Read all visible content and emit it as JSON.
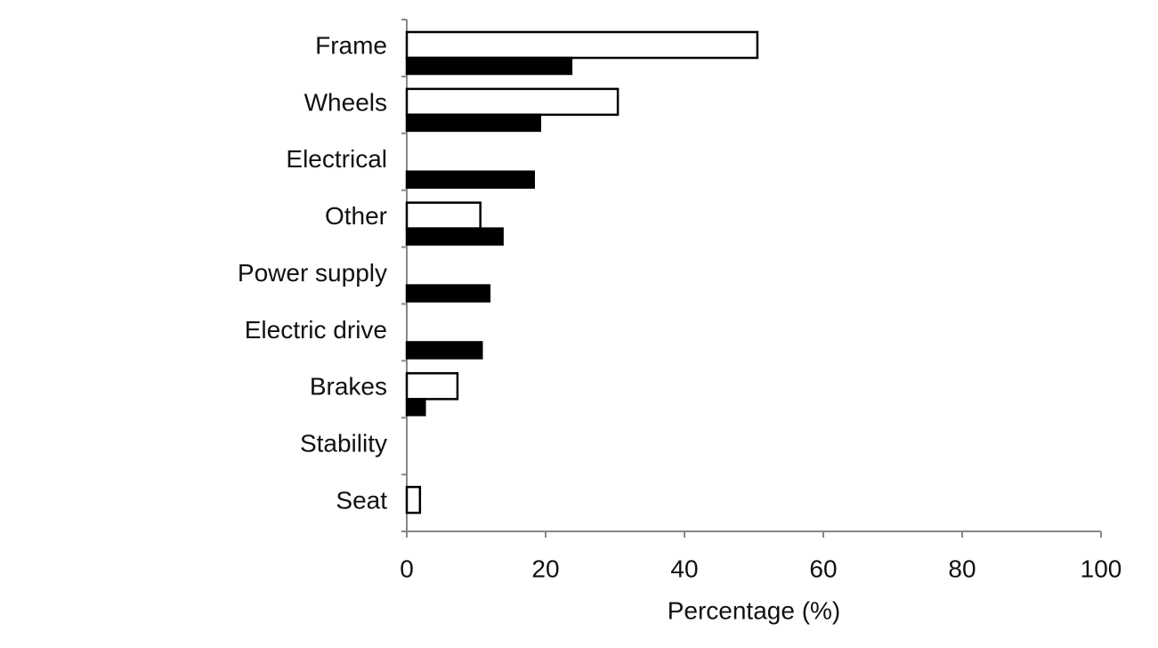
{
  "chart_data": {
    "type": "hbar",
    "x_label": "Percentage (%)",
    "categories": [
      "Frame",
      "Wheels",
      "Electrical",
      "Other",
      "Power supply",
      "Electric drive",
      "Brakes",
      "Stability",
      "Seat"
    ],
    "series": [
      {
        "color": "#ffffff",
        "values": [
          50.5,
          30.4,
          0,
          10.6,
          0,
          0,
          7.3,
          0,
          1.9
        ]
      },
      {
        "color": "#000000",
        "values": [
          23.7,
          19.2,
          18.3,
          13.8,
          11.9,
          10.8,
          2.6,
          0,
          0
        ]
      }
    ],
    "xlim": [
      0,
      100
    ],
    "xticks": [
      0,
      20,
      40,
      60,
      80,
      100
    ],
    "grid": false
  }
}
